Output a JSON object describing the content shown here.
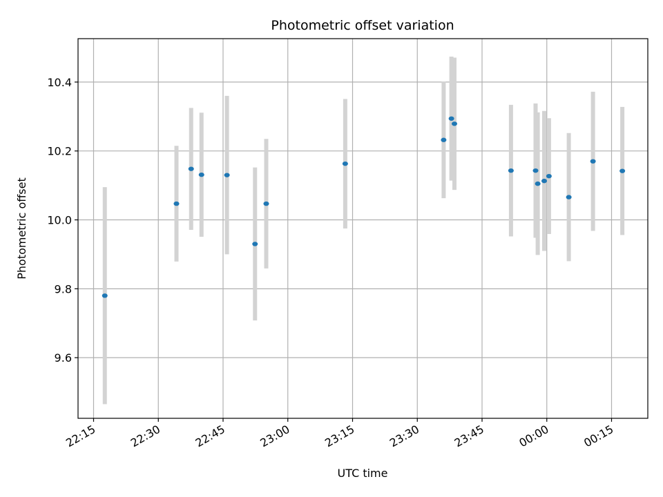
{
  "chart_data": {
    "type": "scatter",
    "title": "Photometric offset variation",
    "xlabel": "UTC time",
    "ylabel": "Photometric offset",
    "x_tick_labels": [
      "22:15",
      "22:30",
      "22:45",
      "23:00",
      "23:15",
      "23:30",
      "23:45",
      "00:00",
      "00:15"
    ],
    "x_tick_minutes": [
      0,
      15,
      30,
      45,
      60,
      75,
      90,
      105,
      120
    ],
    "y_tick_labels": [
      "9.6",
      "9.8",
      "10.0",
      "10.2",
      "10.4"
    ],
    "y_ticks": [
      9.6,
      9.8,
      10.0,
      10.2,
      10.4
    ],
    "xlim_minutes": [
      -3.6,
      128.4
    ],
    "ylim": [
      9.424,
      10.526
    ],
    "grid": true,
    "colors": {
      "marker": "#1f77b4",
      "errorbar": "#d3d3d3",
      "grid": "#b0b0b0",
      "axes": "#000000"
    },
    "points": [
      {
        "t": "22:17:36",
        "y": 9.78,
        "err": 0.315
      },
      {
        "t": "22:34:12",
        "y": 10.047,
        "err": 0.168
      },
      {
        "t": "22:37:36",
        "y": 10.148,
        "err": 0.177
      },
      {
        "t": "22:40:00",
        "y": 10.131,
        "err": 0.18
      },
      {
        "t": "22:45:54",
        "y": 10.13,
        "err": 0.23
      },
      {
        "t": "22:52:24",
        "y": 9.93,
        "err": 0.222
      },
      {
        "t": "22:55:00",
        "y": 10.047,
        "err": 0.188
      },
      {
        "t": "23:13:18",
        "y": 10.163,
        "err": 0.188
      },
      {
        "t": "23:36:06",
        "y": 10.232,
        "err": 0.169
      },
      {
        "t": "23:37:54",
        "y": 10.294,
        "err": 0.18
      },
      {
        "t": "23:38:36",
        "y": 10.279,
        "err": 0.192
      },
      {
        "t": "23:51:42",
        "y": 10.143,
        "err": 0.191
      },
      {
        "t": "23:57:24",
        "y": 10.143,
        "err": 0.195
      },
      {
        "t": "23:57:54",
        "y": 10.105,
        "err": 0.207
      },
      {
        "t": "23:59:24",
        "y": 10.113,
        "err": 0.203
      },
      {
        "t": "00:00:30",
        "y": 10.127,
        "err": 0.168
      },
      {
        "t": "00:05:06",
        "y": 10.066,
        "err": 0.186
      },
      {
        "t": "00:10:42",
        "y": 10.17,
        "err": 0.202
      },
      {
        "t": "00:17:30",
        "y": 10.142,
        "err": 0.186
      }
    ]
  }
}
